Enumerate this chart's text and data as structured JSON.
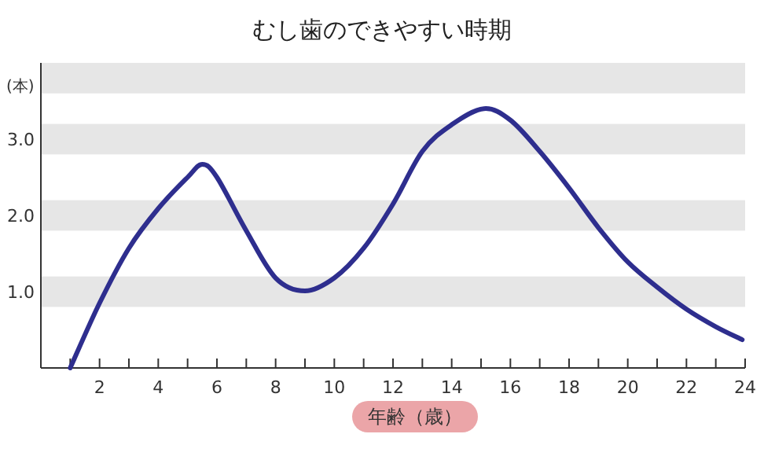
{
  "chart_data": {
    "type": "line",
    "title": "むし歯のできやすい時期",
    "xlabel": "年齢（歳）",
    "ylabel": "(本)",
    "x": [
      1,
      2,
      3,
      4,
      5,
      5.5,
      6,
      7,
      8,
      9,
      10,
      11,
      12,
      13,
      14,
      15.1,
      16,
      17,
      18,
      19,
      20,
      21,
      22,
      23,
      23.9
    ],
    "series": [
      {
        "color": "#2e2e8e",
        "values": [
          0,
          0.85,
          1.57,
          2.09,
          2.5,
          2.67,
          2.5,
          1.8,
          1.18,
          1.01,
          1.18,
          1.57,
          2.15,
          2.84,
          3.19,
          3.4,
          3.25,
          2.84,
          2.36,
          1.84,
          1.39,
          1.06,
          0.77,
          0.54,
          0.37
        ]
      }
    ],
    "xlim": [
      0,
      24
    ],
    "ylim": [
      0,
      4
    ],
    "xticks": [
      {
        "value": 1,
        "label": null
      },
      2,
      {
        "value": 3,
        "label": null
      },
      4,
      {
        "value": 5,
        "label": null
      },
      6,
      {
        "value": 7,
        "label": null
      },
      8,
      {
        "value": 9,
        "label": null
      },
      10,
      {
        "value": 11,
        "label": null
      },
      12,
      {
        "value": 13,
        "label": null
      },
      14,
      {
        "value": 15,
        "label": null
      },
      16,
      {
        "value": 17,
        "label": null
      },
      18,
      {
        "value": 19,
        "label": null
      },
      20,
      {
        "value": 21,
        "label": null
      },
      22,
      {
        "value": 23,
        "label": null
      },
      24
    ],
    "yticks": [
      {
        "value": 1,
        "label": "1.0"
      },
      {
        "value": 2,
        "label": "2.0"
      },
      {
        "value": 3,
        "label": "3.0"
      }
    ],
    "bands": [
      {
        "axis": "y",
        "from": 0.8,
        "to": 1.2,
        "color": "#e6e6e6"
      },
      {
        "axis": "y",
        "from": 1.8,
        "to": 2.2,
        "color": "#e6e6e6"
      },
      {
        "axis": "y",
        "from": 2.8,
        "to": 3.2,
        "color": "#e6e6e6"
      },
      {
        "axis": "y",
        "from": 3.6,
        "to": 4,
        "color": "#e6e6e6"
      }
    ]
  }
}
